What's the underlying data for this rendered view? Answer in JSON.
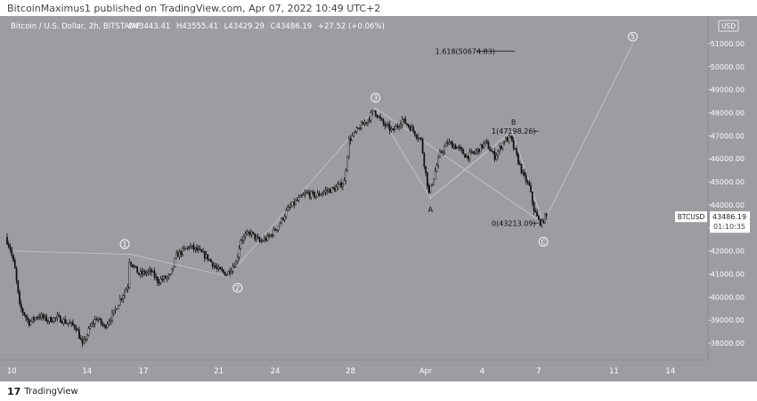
{
  "caption": "BitcoinMaximus1 published on TradingView.com, Apr 07, 2022 10:49 UTC+2",
  "footer": {
    "brand": "TradingView",
    "logo_icon": "tradingview-logo-icon"
  },
  "colors": {
    "background": "#9c9ca1",
    "candle": "#111111",
    "wave_line": "#c4c4c8",
    "label": "#ffffff",
    "price_tag_bg": "#ffffff",
    "price_tag_text": "#222222"
  },
  "chart_data": {
    "type": "candlestick",
    "header": {
      "symbol_line": "Bitcoin / U.S. Dollar, 2h, BITSTAMP",
      "open_label": "O",
      "open": "43443.41",
      "high_label": "H",
      "high": "43555.41",
      "low_label": "L",
      "low": "43429.29",
      "close_label": "C",
      "close": "43486.19",
      "change": "+27.52 (+0.06%)"
    },
    "currency": "USD",
    "symbol_tag": "BTCUSD",
    "last_price": "43486.19",
    "countdown": "01:10:35",
    "ylim": [
      37500,
      51500
    ],
    "y_ticks": [
      38000,
      39000,
      40000,
      41000,
      42000,
      43000,
      44000,
      45000,
      46000,
      47000,
      48000,
      49000,
      50000,
      51000
    ],
    "y_tick_labels": [
      "38000.00",
      "39000.00",
      "40000.00",
      "41000.00",
      "42000.00",
      "43000.00",
      "44000.00",
      "45000.00",
      "46000.00",
      "47000.00",
      "48000.00",
      "49000.00",
      "50000.00",
      "51000.00"
    ],
    "x_ticks": [
      {
        "label": "10",
        "x": "2022-03-10"
      },
      {
        "label": "14",
        "x": "2022-03-14"
      },
      {
        "label": "17",
        "x": "2022-03-17"
      },
      {
        "label": "21",
        "x": "2022-03-21"
      },
      {
        "label": "24",
        "x": "2022-03-24"
      },
      {
        "label": "28",
        "x": "2022-03-28"
      },
      {
        "label": "Apr",
        "x": "2022-04-01"
      },
      {
        "label": "4",
        "x": "2022-04-04"
      },
      {
        "label": "7",
        "x": "2022-04-07"
      },
      {
        "label": "11",
        "x": "2022-04-11"
      },
      {
        "label": "14",
        "x": "2022-04-14"
      }
    ],
    "xlim": [
      "2022-03-09 18:00",
      "2022-04-16 00:00"
    ],
    "price_path": [
      [
        "2022-03-09 18:00",
        42600
      ],
      [
        "2022-03-10 00:00",
        42100
      ],
      [
        "2022-03-10 06:00",
        41200
      ],
      [
        "2022-03-10 12:00",
        39600
      ],
      [
        "2022-03-11 00:00",
        38900
      ],
      [
        "2022-03-11 12:00",
        39200
      ],
      [
        "2022-03-12 00:00",
        39000
      ],
      [
        "2022-03-12 12:00",
        39100
      ],
      [
        "2022-03-13 00:00",
        38900
      ],
      [
        "2022-03-13 12:00",
        38700
      ],
      [
        "2022-03-13 20:00",
        37900
      ],
      [
        "2022-03-14 06:00",
        38700
      ],
      [
        "2022-03-14 14:00",
        39100
      ],
      [
        "2022-03-15 00:00",
        38700
      ],
      [
        "2022-03-15 12:00",
        39300
      ],
      [
        "2022-03-15 20:00",
        39900
      ],
      [
        "2022-03-16 06:00",
        40500
      ],
      [
        "2022-03-16 08:00",
        41600
      ],
      [
        "2022-03-16 20:00",
        41000
      ],
      [
        "2022-03-17 12:00",
        41100
      ],
      [
        "2022-03-17 20:00",
        40700
      ],
      [
        "2022-03-18 12:00",
        40900
      ],
      [
        "2022-03-18 20:00",
        41800
      ],
      [
        "2022-03-19 12:00",
        42200
      ],
      [
        "2022-03-20 00:00",
        42000
      ],
      [
        "2022-03-20 12:00",
        41700
      ],
      [
        "2022-03-21 00:00",
        41200
      ],
      [
        "2022-03-21 12:00",
        41000
      ],
      [
        "2022-03-22 00:00",
        41500
      ],
      [
        "2022-03-22 06:00",
        42500
      ],
      [
        "2022-03-22 18:00",
        42800
      ],
      [
        "2022-03-23 06:00",
        42400
      ],
      [
        "2022-03-23 18:00",
        42600
      ],
      [
        "2022-03-24 06:00",
        43100
      ],
      [
        "2022-03-24 18:00",
        43800
      ],
      [
        "2022-03-25 06:00",
        44200
      ],
      [
        "2022-03-25 18:00",
        44500
      ],
      [
        "2022-03-26 06:00",
        44400
      ],
      [
        "2022-03-26 18:00",
        44600
      ],
      [
        "2022-03-27 06:00",
        44700
      ],
      [
        "2022-03-27 18:00",
        45000
      ],
      [
        "2022-03-28 00:00",
        46800
      ],
      [
        "2022-03-28 12:00",
        47300
      ],
      [
        "2022-03-29 00:00",
        47700
      ],
      [
        "2022-03-29 08:00",
        48100
      ],
      [
        "2022-03-29 20:00",
        47500
      ],
      [
        "2022-03-30 08:00",
        47200
      ],
      [
        "2022-03-30 20:00",
        47700
      ],
      [
        "2022-03-31 08:00",
        47300
      ],
      [
        "2022-03-31 20:00",
        46800
      ],
      [
        "2022-04-01 00:00",
        45800
      ],
      [
        "2022-04-01 06:00",
        44500
      ],
      [
        "2022-04-01 12:00",
        45200
      ],
      [
        "2022-04-01 20:00",
        46200
      ],
      [
        "2022-04-02 06:00",
        46700
      ],
      [
        "2022-04-02 18:00",
        46500
      ],
      [
        "2022-04-03 06:00",
        46100
      ],
      [
        "2022-04-03 18:00",
        46300
      ],
      [
        "2022-04-04 06:00",
        46700
      ],
      [
        "2022-04-04 18:00",
        46100
      ],
      [
        "2022-04-05 06:00",
        46800
      ],
      [
        "2022-04-05 14:00",
        46900
      ],
      [
        "2022-04-05 20:00",
        46300
      ],
      [
        "2022-04-06 06:00",
        45300
      ],
      [
        "2022-04-06 14:00",
        44800
      ],
      [
        "2022-04-06 20:00",
        43800
      ],
      [
        "2022-04-07 02:00",
        43300
      ],
      [
        "2022-04-07 06:00",
        43200
      ],
      [
        "2022-04-07 10:00",
        43490
      ]
    ],
    "wave_points": [
      [
        "2022-03-10 00:00",
        42000
      ],
      [
        "2022-03-16 08:00",
        41850
      ],
      [
        "2022-03-21 12:00",
        40900
      ],
      [
        "2022-03-29 08:00",
        48200
      ],
      [
        "2022-04-01 06:00",
        44300
      ],
      [
        "2022-04-05 14:00",
        47200
      ],
      [
        "2022-04-07 06:00",
        43200
      ],
      [
        "2022-04-12 00:00",
        51000
      ]
    ],
    "correction_lines": [
      [
        [
          "2022-03-29 08:00",
          48200
        ],
        [
          "2022-04-07 06:00",
          43200
        ]
      ],
      [
        [
          "2022-04-01 06:00",
          44300
        ],
        [
          "2022-04-05 14:00",
          47200
        ]
      ]
    ],
    "wave_labels": [
      {
        "text": "1",
        "x": "2022-03-16 00:00",
        "y": 42300,
        "circled": true
      },
      {
        "text": "2",
        "x": "2022-03-22 00:00",
        "y": 40400,
        "circled": true
      },
      {
        "text": "3",
        "x": "2022-03-29 08:00",
        "y": 48650,
        "circled": true
      },
      {
        "text": "A",
        "x": "2022-04-01 06:00",
        "y": 43800,
        "circled": false
      },
      {
        "text": "B",
        "x": "2022-04-05 16:00",
        "y": 47600,
        "circled": false
      },
      {
        "text": "C",
        "x": "2022-04-07 06:00",
        "y": 42400,
        "circled": true
      },
      {
        "text": "5",
        "x": "2022-04-12 00:00",
        "y": 51300,
        "circled": true
      }
    ],
    "fib_levels": [
      {
        "label": "1.618(50674.83)",
        "value": 50674.83,
        "x_start": "2022-04-01 12:00",
        "x_end": "2022-04-05 18:00"
      },
      {
        "label": "1(47198.26)",
        "value": 47198.26,
        "x_start": "2022-04-04 12:00",
        "x_end": "2022-04-07 00:00"
      },
      {
        "label": "0(43213.09)",
        "value": 43213.09,
        "x_start": "2022-04-04 12:00",
        "x_end": "2022-04-07 00:00"
      }
    ]
  }
}
